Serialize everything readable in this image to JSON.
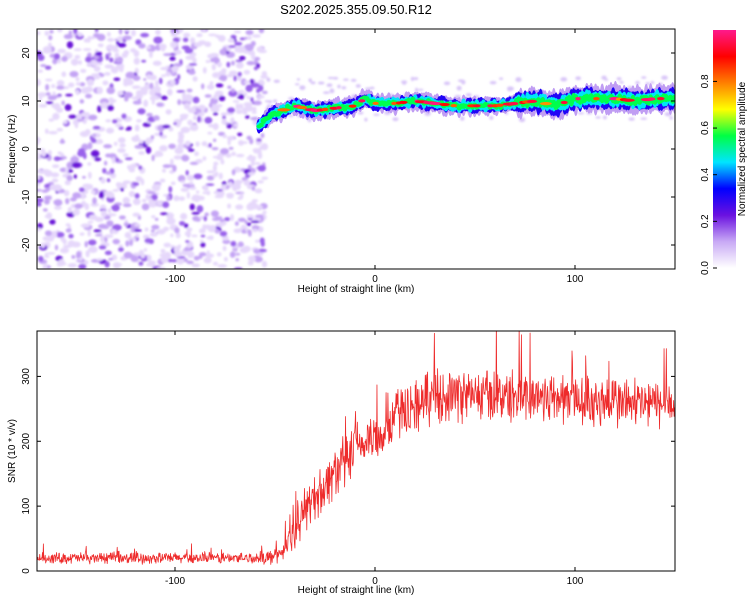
{
  "page_title": "S202.2025.355.09.50.R12",
  "chart_data": [
    {
      "type": "heatmap",
      "name": "spectrogram",
      "title": "S202.2025.355.09.50.R12",
      "xlabel": "Height of straight line (km)",
      "ylabel": "Frequency (Hz)",
      "xlim": [
        -169,
        150
      ],
      "ylim": [
        -25,
        25
      ],
      "xticks": [
        -100,
        0,
        100
      ],
      "xtick_labels": [
        "-100",
        "0",
        "100"
      ],
      "yticks": [
        -20,
        -10,
        0,
        10,
        20
      ],
      "ytick_labels": [
        "-20",
        "-10",
        "0",
        "10",
        "20"
      ],
      "noise_region_x": [
        -169,
        -55
      ],
      "ridge": {
        "x": [
          -58,
          -50,
          -40,
          -30,
          -20,
          -10,
          -5,
          0,
          10,
          20,
          30,
          40,
          50,
          60,
          70,
          80,
          90,
          100,
          110,
          120,
          130,
          140,
          150
        ],
        "frequency": [
          5,
          7.5,
          9,
          8,
          8.5,
          9,
          10.5,
          9.5,
          9.5,
          10,
          9.5,
          9,
          9,
          9,
          9.5,
          10,
          9,
          10.5,
          10.5,
          10.5,
          10,
          10.5,
          10.5
        ]
      },
      "colorbar": {
        "label": "Normalized spectral amplitude",
        "range": [
          0.0,
          1.0
        ],
        "ticks": [
          "0.0",
          "0.2",
          "0.4",
          "0.6",
          "0.8"
        ],
        "colors": [
          "#ffffff",
          "#c8a9f5",
          "#6a11e0",
          "#0000ff",
          "#00e5ff",
          "#00ff44",
          "#ffff00",
          "#ff7f00",
          "#ff0000",
          "#ff1a8c"
        ]
      }
    },
    {
      "type": "line",
      "name": "snr",
      "xlabel": "Height of straight line (km)",
      "ylabel": "SNR (10 * v/v)",
      "xlim": [
        -169,
        150
      ],
      "ylim": [
        0,
        370
      ],
      "xticks": [
        -100,
        0,
        100
      ],
      "xtick_labels": [
        "-100",
        "0",
        "100"
      ],
      "yticks": [
        0,
        100,
        200,
        300
      ],
      "ytick_labels": [
        "0",
        "100",
        "200",
        "300"
      ],
      "color": "#ee2b2b",
      "series": [
        {
          "name": "SNR",
          "x": [
            -169,
            -60,
            -55,
            -50,
            -45,
            -40,
            -35,
            -30,
            -25,
            -20,
            -15,
            -10,
            -5,
            0,
            5,
            10,
            15,
            20,
            25,
            30,
            40,
            50,
            60,
            70,
            80,
            90,
            100,
            110,
            120,
            130,
            140,
            150
          ],
          "mean": [
            20,
            20,
            21,
            22,
            35,
            60,
            95,
            115,
            130,
            155,
            165,
            185,
            200,
            205,
            215,
            240,
            250,
            255,
            262,
            270,
            272,
            270,
            272,
            268,
            270,
            267,
            265,
            262,
            262,
            258,
            258,
            255
          ],
          "spread": [
            10,
            10,
            12,
            14,
            20,
            30,
            40,
            42,
            45,
            48,
            50,
            50,
            48,
            45,
            42,
            45,
            50,
            50,
            48,
            48,
            48,
            48,
            48,
            48,
            48,
            48,
            48,
            50,
            50,
            48,
            45,
            45
          ]
        }
      ]
    }
  ]
}
